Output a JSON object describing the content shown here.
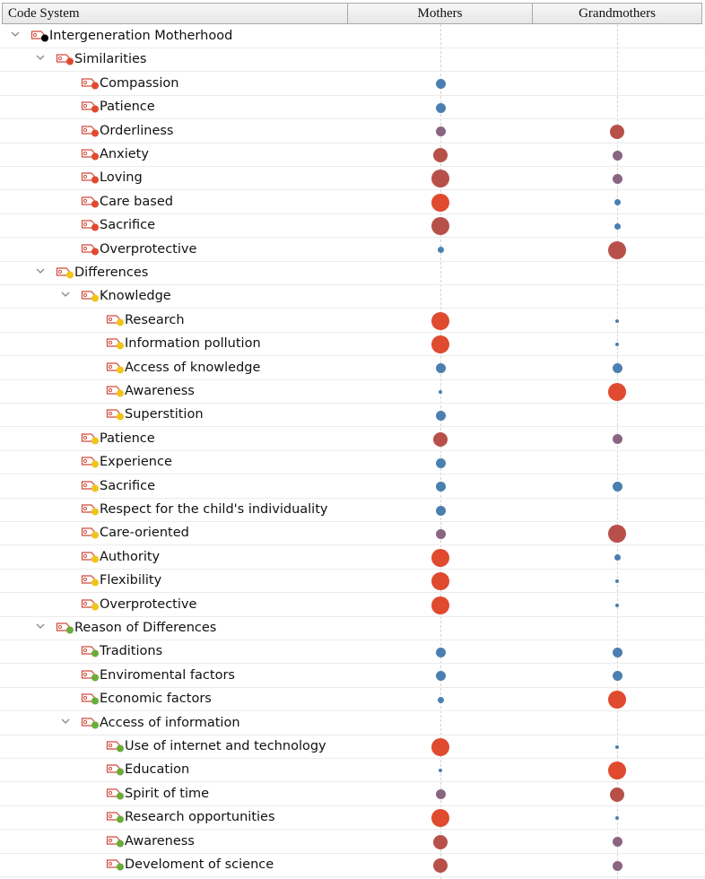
{
  "header": {
    "code_system": "Code System",
    "mothers": "Mothers",
    "grandmothers": "Grandmothers"
  },
  "colors": {
    "red": "#e04a2e",
    "mauve": "#8a6582",
    "blue": "#4a80b0",
    "brick": "#b8504a",
    "yellow": "#f0c419",
    "green": "#6aac3a",
    "black": "#000000"
  },
  "rows": [
    {
      "label": "Intergeneration Motherhood",
      "level": 0,
      "expanded": true,
      "color": "black",
      "m": null,
      "g": null
    },
    {
      "label": "Similarities",
      "level": 1,
      "expanded": true,
      "color": "red",
      "m": null,
      "g": null
    },
    {
      "label": "Compassion",
      "level": 2,
      "color": "red",
      "m": {
        "s": 2,
        "c": "blue"
      },
      "g": null
    },
    {
      "label": "Patience",
      "level": 2,
      "color": "red",
      "m": {
        "s": 2,
        "c": "blue"
      },
      "g": null
    },
    {
      "label": "Orderliness",
      "level": 2,
      "color": "red",
      "m": {
        "s": 2,
        "c": "mauve"
      },
      "g": {
        "s": 3,
        "c": "brick"
      }
    },
    {
      "label": "Anxiety",
      "level": 2,
      "color": "red",
      "m": {
        "s": 3,
        "c": "brick"
      },
      "g": {
        "s": 2,
        "c": "mauve"
      }
    },
    {
      "label": "Loving",
      "level": 2,
      "color": "red",
      "m": {
        "s": 4,
        "c": "brick"
      },
      "g": {
        "s": 2,
        "c": "mauve"
      }
    },
    {
      "label": "Care based",
      "level": 2,
      "color": "red",
      "m": {
        "s": 4,
        "c": "red"
      },
      "g": {
        "s": 1,
        "c": "blue"
      }
    },
    {
      "label": "Sacrifice",
      "level": 2,
      "color": "red",
      "m": {
        "s": 4,
        "c": "brick"
      },
      "g": {
        "s": 1,
        "c": "blue"
      }
    },
    {
      "label": "Overprotective",
      "level": 2,
      "color": "red",
      "m": {
        "s": 1,
        "c": "blue"
      },
      "g": {
        "s": 4,
        "c": "brick"
      }
    },
    {
      "label": "Differences",
      "level": 1,
      "expanded": true,
      "color": "yellow",
      "m": null,
      "g": null
    },
    {
      "label": "Knowledge",
      "level": 2,
      "expanded": true,
      "color": "yellow",
      "m": null,
      "g": null
    },
    {
      "label": "Research",
      "level": 3,
      "color": "yellow",
      "m": {
        "s": 4,
        "c": "red"
      },
      "g": {
        "s": 0,
        "c": "blue"
      }
    },
    {
      "label": "Information pollution",
      "level": 3,
      "color": "yellow",
      "m": {
        "s": 4,
        "c": "red"
      },
      "g": {
        "s": 0,
        "c": "blue"
      }
    },
    {
      "label": "Access of knowledge",
      "level": 3,
      "color": "yellow",
      "m": {
        "s": 2,
        "c": "blue"
      },
      "g": {
        "s": 2,
        "c": "blue"
      }
    },
    {
      "label": "Awareness",
      "level": 3,
      "color": "yellow",
      "m": {
        "s": 0,
        "c": "blue"
      },
      "g": {
        "s": 4,
        "c": "red"
      }
    },
    {
      "label": "Superstition",
      "level": 3,
      "color": "yellow",
      "m": {
        "s": 2,
        "c": "blue"
      },
      "g": null
    },
    {
      "label": "Patience",
      "level": 2,
      "color": "yellow",
      "m": {
        "s": 3,
        "c": "brick"
      },
      "g": {
        "s": 2,
        "c": "mauve"
      }
    },
    {
      "label": "Experience",
      "level": 2,
      "color": "yellow",
      "m": {
        "s": 2,
        "c": "blue"
      },
      "g": null
    },
    {
      "label": "Sacrifice",
      "level": 2,
      "color": "yellow",
      "m": {
        "s": 2,
        "c": "blue"
      },
      "g": {
        "s": 2,
        "c": "blue"
      }
    },
    {
      "label": "Respect for the child's individuality",
      "level": 2,
      "color": "yellow",
      "m": {
        "s": 2,
        "c": "blue"
      },
      "g": null
    },
    {
      "label": "Care-oriented",
      "level": 2,
      "color": "yellow",
      "m": {
        "s": 2,
        "c": "mauve"
      },
      "g": {
        "s": 4,
        "c": "brick"
      }
    },
    {
      "label": "Authority",
      "level": 2,
      "color": "yellow",
      "m": {
        "s": 4,
        "c": "red"
      },
      "g": {
        "s": 1,
        "c": "blue"
      }
    },
    {
      "label": "Flexibility",
      "level": 2,
      "color": "yellow",
      "m": {
        "s": 4,
        "c": "red"
      },
      "g": {
        "s": 0,
        "c": "blue"
      }
    },
    {
      "label": "Overprotective",
      "level": 2,
      "color": "yellow",
      "m": {
        "s": 4,
        "c": "red"
      },
      "g": {
        "s": 0,
        "c": "blue"
      }
    },
    {
      "label": "Reason of Differences",
      "level": 1,
      "expanded": true,
      "color": "green",
      "m": null,
      "g": null
    },
    {
      "label": "Traditions",
      "level": 2,
      "color": "green",
      "m": {
        "s": 2,
        "c": "blue"
      },
      "g": {
        "s": 2,
        "c": "blue"
      }
    },
    {
      "label": "Enviromental factors",
      "level": 2,
      "color": "green",
      "m": {
        "s": 2,
        "c": "blue"
      },
      "g": {
        "s": 2,
        "c": "blue"
      }
    },
    {
      "label": "Economic factors",
      "level": 2,
      "color": "green",
      "m": {
        "s": 1,
        "c": "blue"
      },
      "g": {
        "s": 4,
        "c": "red"
      }
    },
    {
      "label": "Access of information",
      "level": 2,
      "expanded": true,
      "color": "green",
      "m": null,
      "g": null
    },
    {
      "label": "Use of internet and technology",
      "level": 3,
      "color": "green",
      "m": {
        "s": 4,
        "c": "red"
      },
      "g": {
        "s": 0,
        "c": "blue"
      }
    },
    {
      "label": "Education",
      "level": 3,
      "color": "green",
      "m": {
        "s": 0,
        "c": "blue"
      },
      "g": {
        "s": 4,
        "c": "red"
      }
    },
    {
      "label": "Spirit of time",
      "level": 3,
      "color": "green",
      "m": {
        "s": 2,
        "c": "mauve"
      },
      "g": {
        "s": 3,
        "c": "brick"
      }
    },
    {
      "label": "Research opportunities",
      "level": 3,
      "color": "green",
      "m": {
        "s": 4,
        "c": "red"
      },
      "g": {
        "s": 0,
        "c": "blue"
      }
    },
    {
      "label": "Awareness",
      "level": 3,
      "color": "green",
      "m": {
        "s": 3,
        "c": "brick"
      },
      "g": {
        "s": 2,
        "c": "mauve"
      }
    },
    {
      "label": "Develoment of science",
      "level": 3,
      "color": "green",
      "m": {
        "s": 3,
        "c": "brick"
      },
      "g": {
        "s": 2,
        "c": "mauve"
      }
    }
  ]
}
